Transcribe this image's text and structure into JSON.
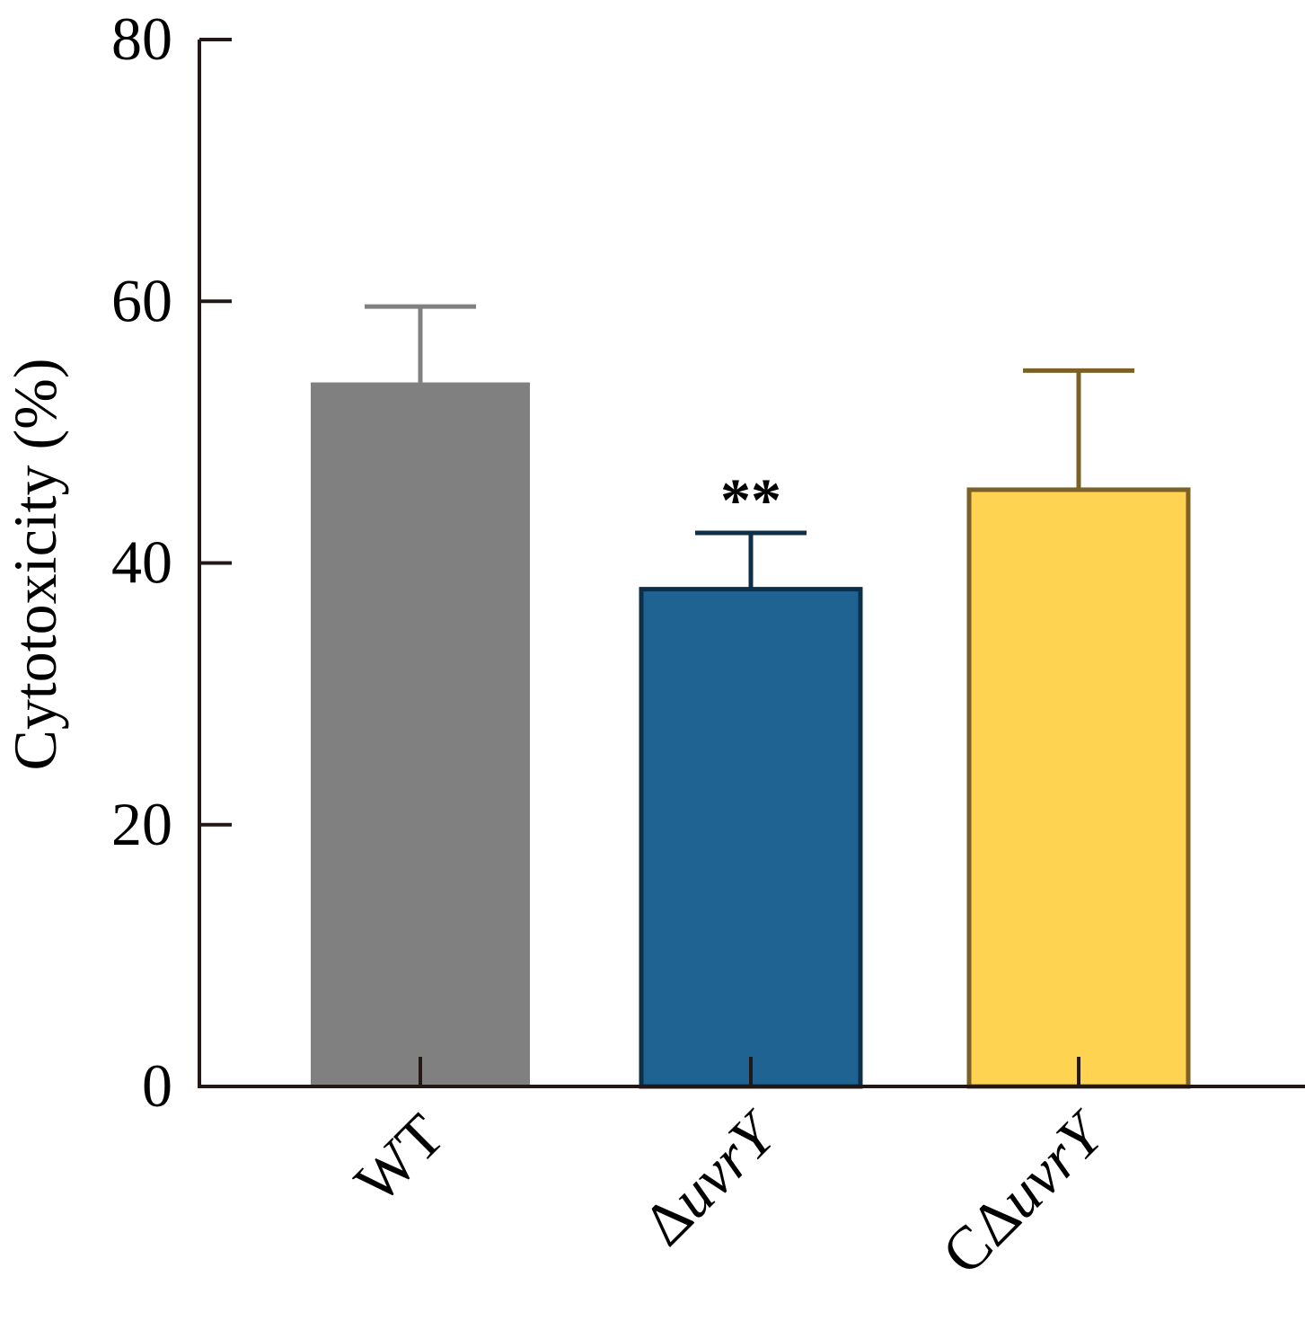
{
  "chart_data": {
    "type": "bar",
    "title": "",
    "xlabel": "",
    "ylabel": "Cytotoxicity (%)",
    "ylim": [
      0,
      80
    ],
    "yticks": [
      0,
      20,
      40,
      60,
      80
    ],
    "grid": false,
    "categories": [
      {
        "prefix": "",
        "italic": "",
        "label": "WT"
      },
      {
        "prefix": "Δ",
        "italic": "uvrY",
        "label": "ΔuvrY"
      },
      {
        "prefix": "CΔ",
        "italic": "uvrY",
        "label": "CΔuvrY"
      }
    ],
    "values": [
      53.8,
      38.0,
      45.6
    ],
    "errors": [
      5.8,
      4.3,
      9.1
    ],
    "significance": [
      "",
      "**",
      ""
    ],
    "colors": {
      "fill": [
        "#808080",
        "#1f6392",
        "#fdd351"
      ],
      "stroke": [
        "#808080",
        "#0d2f47",
        "#7b6125"
      ],
      "error": [
        "#808080",
        "#0d2f47",
        "#7b6125"
      ]
    }
  }
}
